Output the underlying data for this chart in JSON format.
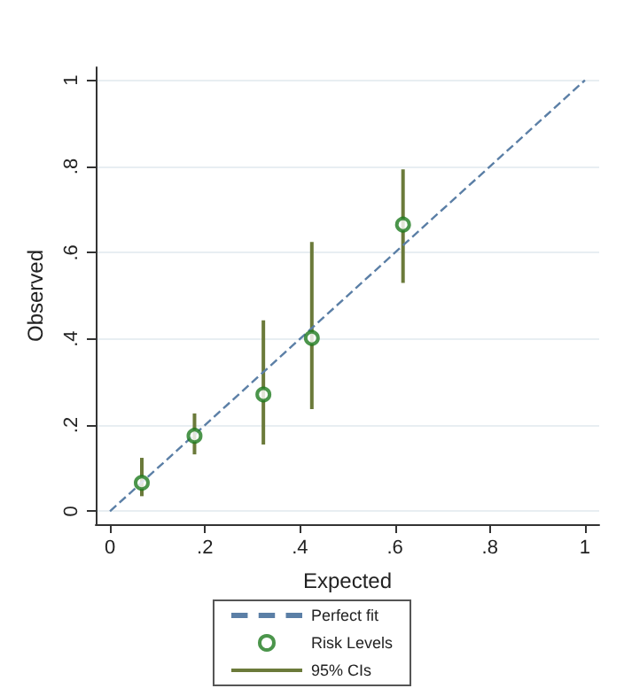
{
  "chart_data": {
    "type": "scatter",
    "xlabel": "Expected",
    "ylabel": "Observed",
    "xlim": [
      -0.03,
      1.03
    ],
    "ylim": [
      -0.03,
      1.03
    ],
    "xticks": [
      0,
      {
        "value": 0.2,
        "label": ".2"
      },
      {
        "value": 0.4,
        "label": ".4"
      },
      {
        "value": 0.6,
        "label": ".6"
      },
      {
        "value": 0.8,
        "label": ".8"
      },
      1
    ],
    "yticks": [
      0,
      {
        "value": 0.2,
        "label": ".2"
      },
      {
        "value": 0.4,
        "label": ".4"
      },
      {
        "value": 0.6,
        "label": ".6"
      },
      {
        "value": 0.8,
        "label": ".8"
      },
      1
    ],
    "grid": "y",
    "legend": "bottom",
    "annotations": [
      "95% CIs"
    ],
    "series": [
      {
        "name": "Perfect fit",
        "type": "line",
        "color": "#5b7fa6",
        "line_style": "dashed",
        "marker": "none",
        "x": [
          0,
          1
        ],
        "values": [
          0,
          1
        ]
      },
      {
        "name": "Risk Levels",
        "color": "#1e7a1e",
        "marker": "circle",
        "x": [
          0.067,
          0.178,
          0.323,
          0.425,
          0.617
        ],
        "values": [
          0.066,
          0.175,
          0.271,
          0.402,
          0.665
        ],
        "errors": [
          [
            0.035,
            0.124
          ],
          [
            0.132,
            0.227
          ],
          [
            0.155,
            0.443
          ],
          [
            0.237,
            0.625
          ],
          [
            0.53,
            0.793
          ]
        ]
      }
    ]
  }
}
